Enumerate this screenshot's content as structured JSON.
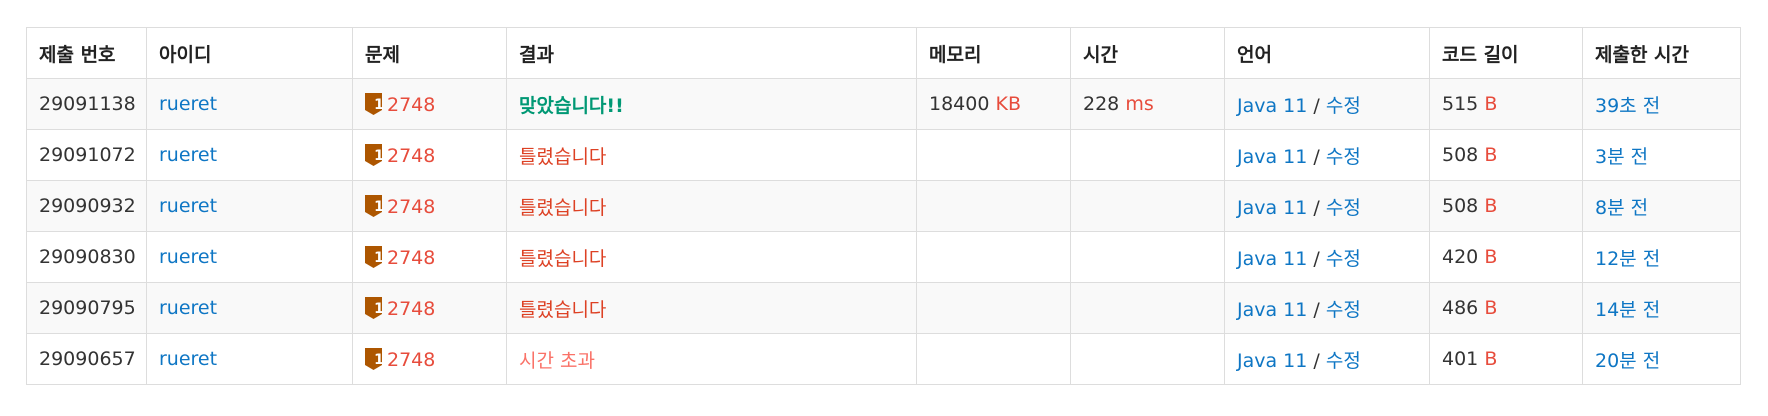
{
  "columns": {
    "submission_id": "제출 번호",
    "user": "아이디",
    "problem": "문제",
    "result": "결과",
    "memory": "메모리",
    "time": "시간",
    "language": "언어",
    "code_length": "코드 길이",
    "submitted_at": "제출한 시간"
  },
  "units": {
    "memory": "KB",
    "time": "ms",
    "code_length": "B"
  },
  "colors": {
    "link": "#0e76c4",
    "unit": "#e74c3c",
    "accepted": "#009874",
    "wrong": "#dd4124",
    "timeout": "#fa7268",
    "tier_badge": "#ad5600"
  },
  "rows": [
    {
      "id": "29091138",
      "user": "rueret",
      "tier_icon": "bronze-1-tier-icon",
      "tier_level": "1",
      "problem": "2748",
      "result": "맞았습니다!!",
      "result_type": "accepted",
      "memory": "18400",
      "time": "228",
      "language": "Java 11",
      "separator": "/",
      "edit": "수정",
      "length": "515",
      "submitted": "39초 전"
    },
    {
      "id": "29091072",
      "user": "rueret",
      "tier_icon": "bronze-1-tier-icon",
      "tier_level": "1",
      "problem": "2748",
      "result": "틀렸습니다",
      "result_type": "wrong",
      "memory": "",
      "time": "",
      "language": "Java 11",
      "separator": "/",
      "edit": "수정",
      "length": "508",
      "submitted": "3분 전"
    },
    {
      "id": "29090932",
      "user": "rueret",
      "tier_icon": "bronze-1-tier-icon",
      "tier_level": "1",
      "problem": "2748",
      "result": "틀렸습니다",
      "result_type": "wrong",
      "memory": "",
      "time": "",
      "language": "Java 11",
      "separator": "/",
      "edit": "수정",
      "length": "508",
      "submitted": "8분 전"
    },
    {
      "id": "29090830",
      "user": "rueret",
      "tier_icon": "bronze-1-tier-icon",
      "tier_level": "1",
      "problem": "2748",
      "result": "틀렸습니다",
      "result_type": "wrong",
      "memory": "",
      "time": "",
      "language": "Java 11",
      "separator": "/",
      "edit": "수정",
      "length": "420",
      "submitted": "12분 전"
    },
    {
      "id": "29090795",
      "user": "rueret",
      "tier_icon": "bronze-1-tier-icon",
      "tier_level": "1",
      "problem": "2748",
      "result": "틀렸습니다",
      "result_type": "wrong",
      "memory": "",
      "time": "",
      "language": "Java 11",
      "separator": "/",
      "edit": "수정",
      "length": "486",
      "submitted": "14분 전"
    },
    {
      "id": "29090657",
      "user": "rueret",
      "tier_icon": "bronze-1-tier-icon",
      "tier_level": "1",
      "problem": "2748",
      "result": "시간 초과",
      "result_type": "timeout",
      "memory": "",
      "time": "",
      "language": "Java 11",
      "separator": "/",
      "edit": "수정",
      "length": "401",
      "submitted": "20분 전"
    }
  ]
}
